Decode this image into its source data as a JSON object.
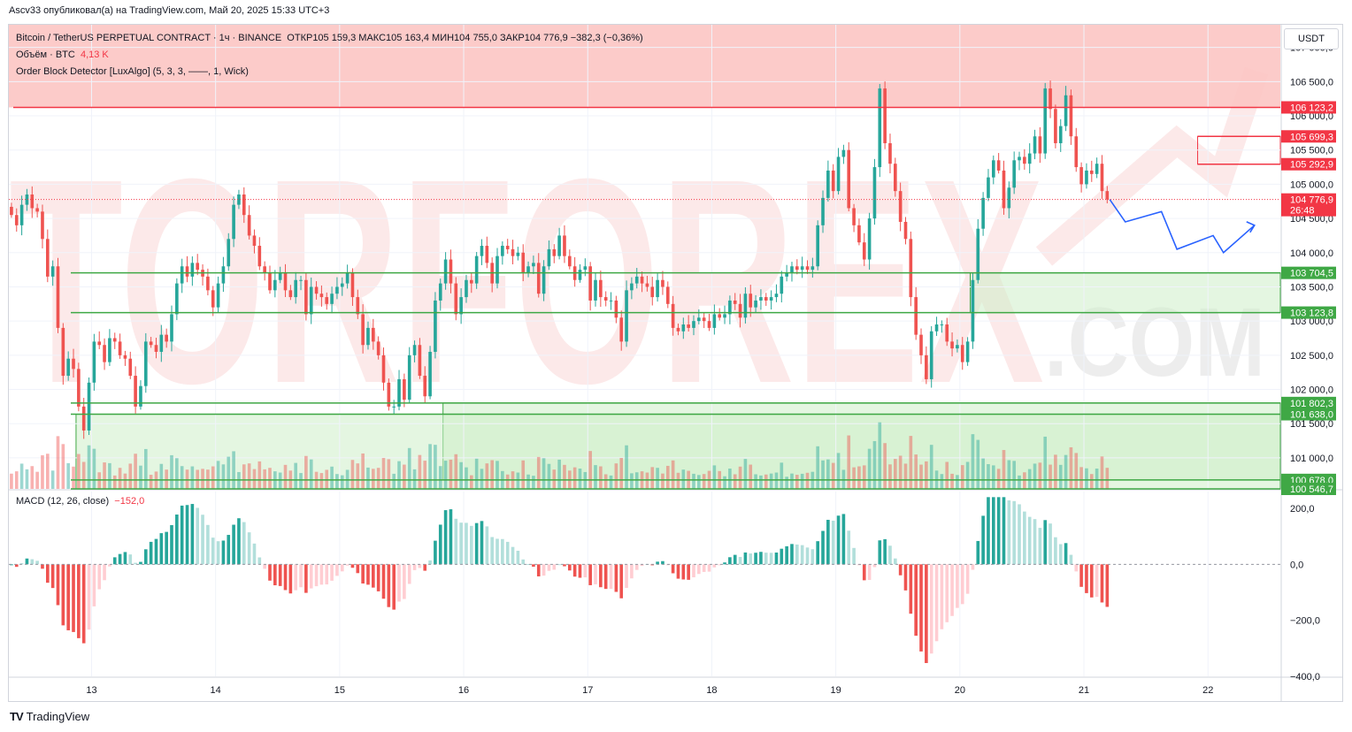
{
  "header": {
    "published_text": "Ascv33 опубликовал(а) на TradingView.com, Май 20, 2025 15:33 UTC+3"
  },
  "legend": {
    "symbol_line": "Bitcoin / TetherUS PERPETUAL CONTRACT · 1ч · BINANCE",
    "ohlc": "ОТКР105 159,3  МАКС105 163,4  МИН104 755,0  ЗАКР104 776,9  −382,3 (−0,36%)",
    "volume_label": "Объём · BTC",
    "volume_value": "4,13 K",
    "indicator": "Order Block Detector [LuxAlgo] (5, 3, 3, ——, 1, Wick)"
  },
  "macd_legend": {
    "label": "MACD (12, 26, close)",
    "value": "−152,0"
  },
  "currency_button": "USDT",
  "brand": {
    "logo": "TV",
    "name": "TradingView"
  },
  "watermark": {
    "text": "TORFOREX",
    "suffix": ".COM"
  },
  "colors": {
    "up": "#26a69a",
    "down": "#ef5350",
    "up_light": "#b2dfdb",
    "down_light": "#ffcdd2",
    "bear_zone": "#fcc5c3",
    "bull_zone": "#cdeec9",
    "level_red": "#f23645",
    "level_green": "#3fa845",
    "forecast": "#2962ff"
  },
  "chart_data": [
    {
      "type": "candlestick",
      "title": "Bitcoin / TetherUS PERPETUAL CONTRACT · 1ч · BINANCE",
      "timeframe": "1h",
      "ylim": [
        100546.7,
        107331.4
      ],
      "y_ticks": [
        "107 000,0",
        "106 500,0",
        "106 000,0",
        "105 500,0",
        "105 000,0",
        "104 500,0",
        "104 000,0",
        "103 500,0",
        "103 000,0",
        "102 500,0",
        "102 000,0",
        "101 500,0",
        "101 000,0"
      ],
      "y_tick_values": [
        107000,
        106500,
        106000,
        105500,
        105000,
        104500,
        104000,
        103500,
        103000,
        102500,
        102000,
        101500,
        101000
      ],
      "x_ticks": [
        "13",
        "14",
        "15",
        "16",
        "17",
        "18",
        "19",
        "20",
        "21",
        "22"
      ],
      "x_tick_hours": [
        16,
        40,
        64,
        88,
        112,
        136,
        160,
        184,
        208,
        232
      ],
      "hours_visible": [
        0,
        246
      ],
      "closes": [
        104550,
        104400,
        104700,
        104850,
        104650,
        104600,
        104200,
        103650,
        103800,
        102900,
        102200,
        102450,
        102300,
        101750,
        101400,
        102100,
        102700,
        102650,
        102400,
        102750,
        102700,
        102500,
        102450,
        102200,
        101750,
        102050,
        102700,
        102650,
        102550,
        102800,
        102700,
        103100,
        103550,
        103800,
        103650,
        103850,
        103750,
        103650,
        103450,
        103200,
        103550,
        103800,
        104200,
        104700,
        104850,
        104550,
        104250,
        104100,
        103800,
        103700,
        103450,
        103600,
        103700,
        103450,
        103350,
        103600,
        103600,
        103100,
        103500,
        103400,
        103350,
        103250,
        103400,
        103500,
        103550,
        103700,
        103350,
        103100,
        102650,
        102900,
        102700,
        102500,
        102100,
        101750,
        101750,
        102150,
        101850,
        102500,
        102650,
        102200,
        101900,
        102550,
        103300,
        103550,
        103900,
        103550,
        103100,
        103350,
        103600,
        103550,
        103950,
        104100,
        103850,
        103550,
        103950,
        104100,
        104050,
        103950,
        104000,
        103700,
        103800,
        103850,
        103400,
        103800,
        104050,
        103950,
        104250,
        103950,
        103800,
        103600,
        103750,
        103800,
        103300,
        103600,
        103350,
        103300,
        103300,
        103050,
        102700,
        103450,
        103550,
        103650,
        103550,
        103500,
        103350,
        103600,
        103500,
        103250,
        102900,
        102850,
        102950,
        102900,
        103000,
        103050,
        103000,
        102900,
        103100,
        103050,
        103100,
        103300,
        103250,
        103050,
        103400,
        103200,
        103300,
        103350,
        103300,
        103350,
        103400,
        103650,
        103700,
        103800,
        103750,
        103800,
        103750,
        103800,
        104400,
        104800,
        105200,
        104900,
        105400,
        105500,
        104650,
        104400,
        104150,
        103900,
        104500,
        105250,
        106400,
        105600,
        105300,
        104900,
        104450,
        104200,
        103350,
        102800,
        102500,
        102150,
        102850,
        102950,
        102950,
        102700,
        102600,
        102650,
        102400,
        102700,
        103600,
        104350,
        104800,
        105100,
        105350,
        105200,
        104650,
        104950,
        105350,
        105400,
        105300,
        105450,
        105700,
        105450,
        106400,
        106100,
        105600,
        105850,
        106300,
        105700,
        105250,
        105000,
        105200,
        105150,
        105300,
        104900,
        104777
      ],
      "forecast_path": [
        [
          104776.9,
          0
        ],
        [
          104450,
          3
        ],
        [
          104600,
          10
        ],
        [
          104050,
          13
        ],
        [
          104250,
          20
        ],
        [
          104000,
          22
        ],
        [
          104400,
          28
        ]
      ],
      "horizontal_levels": [
        106123.2,
        105699.3,
        105292.9,
        104776.9,
        103704.5,
        103123.8,
        101802.3,
        101638.0,
        100678.0,
        100546.7
      ],
      "price_labels": [
        {
          "text": "106 123,2",
          "value": 106123.2,
          "color": "#f23645"
        },
        {
          "text": "105 699,3",
          "value": 105699.3,
          "color": "#f23645"
        },
        {
          "text": "105 292,9",
          "value": 105292.9,
          "color": "#f23645"
        },
        {
          "text": "104 776,9",
          "value": 104776.9,
          "color": "#f23645",
          "sub": "26:48"
        },
        {
          "text": "103 704,5",
          "value": 103704.5,
          "color": "#3fa845"
        },
        {
          "text": "103 123,8",
          "value": 103123.8,
          "color": "#3fa845"
        },
        {
          "text": "101 802,3",
          "value": 101802.3,
          "color": "#3fa845"
        },
        {
          "text": "101 638,0",
          "value": 101638.0,
          "color": "#3fa845"
        },
        {
          "text": "100 678,0",
          "value": 100678.0,
          "color": "#3fa845"
        },
        {
          "text": "100 546,7",
          "value": 100546.7,
          "color": "#3fa845"
        }
      ],
      "zones": [
        {
          "kind": "bearish",
          "top": 107331.4,
          "bottom": 106123.2,
          "from_hour": 0
        },
        {
          "kind": "bearish-outline",
          "top": 105699.3,
          "bottom": 105292.9,
          "from_hour": 230
        },
        {
          "kind": "bullish",
          "top": 103704.5,
          "bottom": 103123.8,
          "from_hour": 186
        },
        {
          "kind": "bullish",
          "top": 101802.3,
          "bottom": 101638.0,
          "from_hour": 84
        },
        {
          "kind": "bullish",
          "top": 101638.0,
          "bottom": 100678.0,
          "from_hour": 84
        },
        {
          "kind": "bullish",
          "top": 101638.0,
          "bottom": 100546.7,
          "from_hour": 13
        }
      ]
    },
    {
      "type": "bar",
      "title": "MACD (12, 26, close)",
      "last_value": -152.0,
      "ylim": [
        -400,
        260
      ],
      "y_ticks": [
        "200,0",
        "0,0",
        "−200,0",
        "−400,0"
      ],
      "y_tick_values": [
        200,
        0,
        -200,
        -400
      ]
    }
  ]
}
